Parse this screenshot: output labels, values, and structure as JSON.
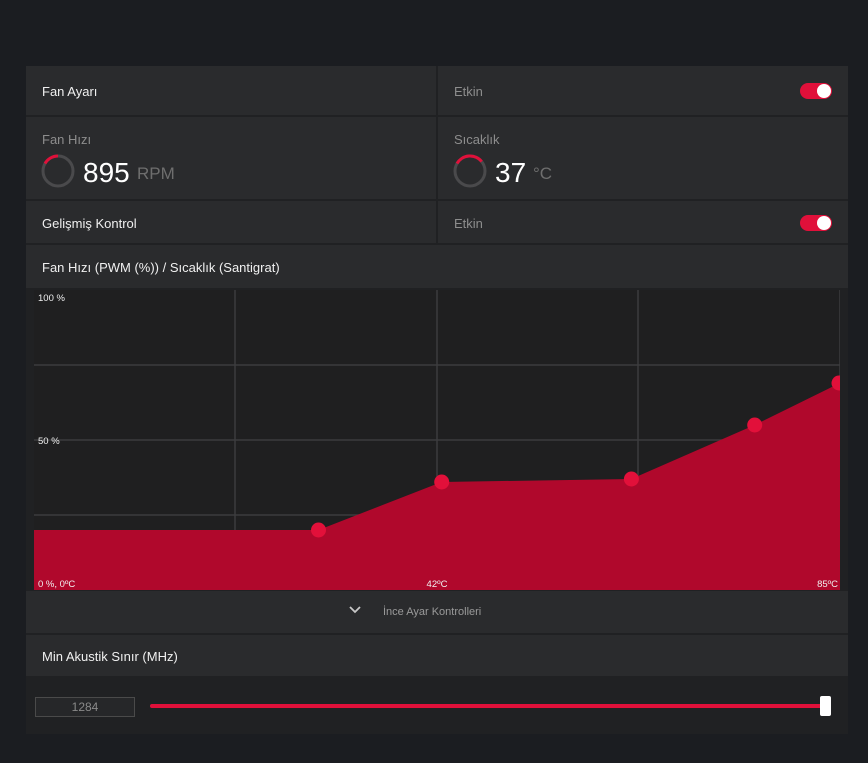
{
  "fan_setting": {
    "label": "Fan Ayarı",
    "status_label": "Etkin",
    "enabled": true
  },
  "fan_speed": {
    "label": "Fan Hızı",
    "value": "895",
    "unit": "RPM",
    "gauge_fraction": 0.2
  },
  "temperature": {
    "label": "Sıcaklık",
    "value": "37",
    "unit": "°C",
    "gauge_fraction": 0.37
  },
  "advanced_control": {
    "label": "Gelişmiş Kontrol",
    "status_label": "Etkin",
    "enabled": true
  },
  "curve_header": {
    "label": "Fan Hızı (PWM (%)) / Sıcaklık (Santigrat)"
  },
  "chart_data": {
    "type": "area",
    "title": "Fan Hızı (PWM (%)) / Sıcaklık (Santigrat)",
    "xlim": [
      0,
      85
    ],
    "ylim": [
      0,
      100
    ],
    "tick_labels": {
      "y_top": "100 %",
      "y_mid": "50 %",
      "origin": "0 %, 0ºC",
      "x_mid": "42ºC",
      "x_max": "85ºC"
    },
    "x": [
      30,
      43,
      63,
      76,
      85
    ],
    "y": [
      20,
      36,
      37,
      55,
      69
    ],
    "fill_color": "#b0082c",
    "point_color": "#e2103a",
    "grid": true
  },
  "fine_tune": {
    "label": "İnce Ayar Kontrolleri",
    "icon": "chevron-down-icon"
  },
  "acoustic_limit": {
    "label": "Min Akustik Sınır (MHz)",
    "value": "1284",
    "slider_fraction": 1.0
  },
  "colors": {
    "accent": "#e0103a",
    "background": "#1b1d21",
    "panel": "#2a2b2d"
  }
}
